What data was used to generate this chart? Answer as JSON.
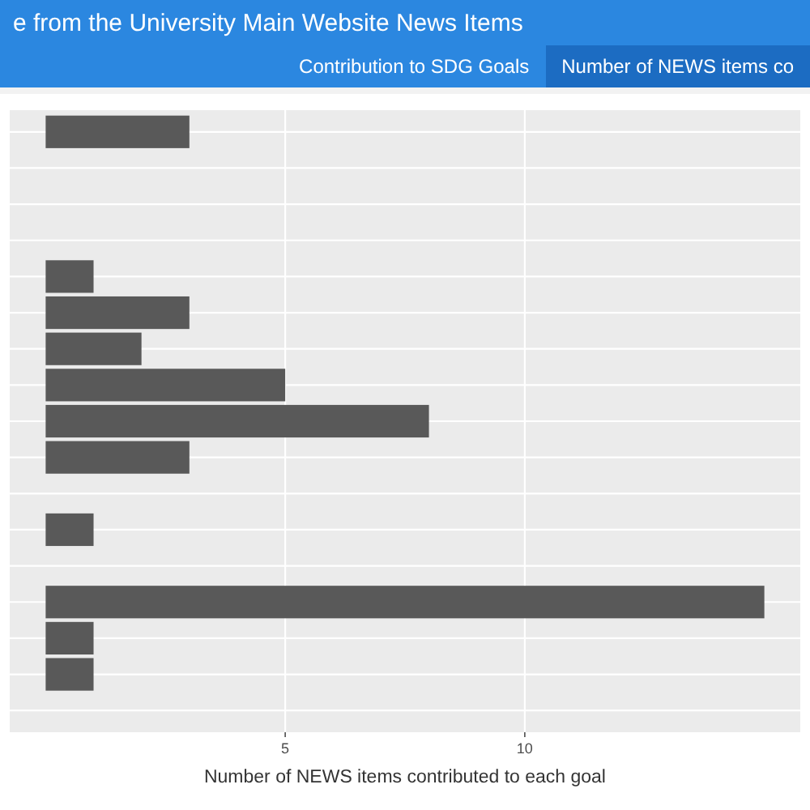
{
  "chart_data": {
    "type": "bar",
    "orientation": "horizontal",
    "title": "e from the University Main Website News Items",
    "annotations": [
      "Contribution to SDG Goals",
      "Number of NEWS items co"
    ],
    "xlabel": "Number of NEWS items contributed to each goal",
    "categories": [
      null,
      null,
      null,
      null,
      null,
      null,
      null,
      null,
      null,
      null,
      null,
      null,
      null,
      null,
      null,
      null,
      null
    ],
    "values": [
      3,
      0,
      0,
      0,
      1,
      3,
      2,
      5,
      8,
      3,
      0,
      1,
      0,
      15,
      1,
      1,
      0
    ],
    "color": "#595959",
    "xlim": [
      -0.75,
      15.75
    ],
    "xticks": [
      5,
      10
    ],
    "grid": true,
    "tick_labels": "x"
  }
}
